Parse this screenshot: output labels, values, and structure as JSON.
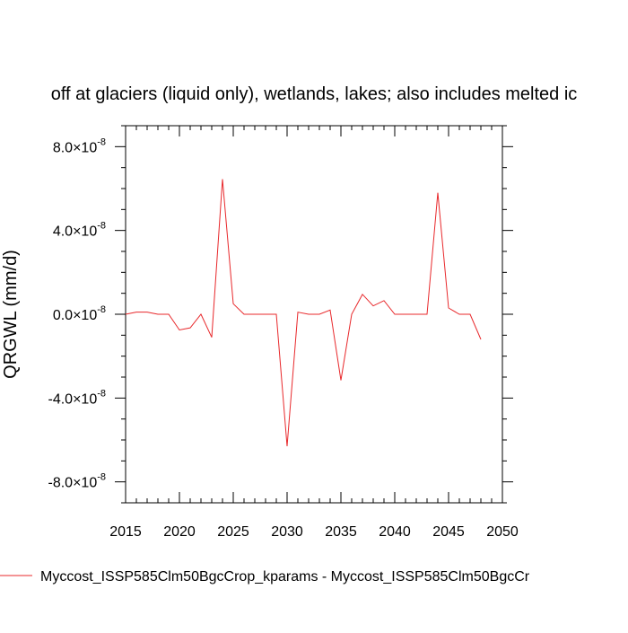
{
  "chart_data": {
    "type": "line",
    "title": "off at glaciers (liquid only), wetlands, lakes; also includes melted ic",
    "xlabel": "",
    "ylabel": "QRGWL  (mm/d)",
    "xlim": [
      2015,
      2050
    ],
    "ylim": [
      -9e-08,
      9e-08
    ],
    "x_ticks": [
      2015,
      2020,
      2025,
      2030,
      2035,
      2040,
      2045,
      2050
    ],
    "x_tick_labels": [
      "2015",
      "2020",
      "2025",
      "2030",
      "2035",
      "2040",
      "2045",
      "2050"
    ],
    "y_ticks": [
      8e-08,
      4e-08,
      0,
      -4e-08,
      -8e-08
    ],
    "y_tick_labels": [
      {
        "mantissa": "8.0",
        "exponent": "-8"
      },
      {
        "mantissa": "4.0",
        "exponent": "-8"
      },
      {
        "mantissa": "0.0",
        "exponent": "-8"
      },
      {
        "mantissa": "-4.0",
        "exponent": "-8"
      },
      {
        "mantissa": "-8.0",
        "exponent": "-8"
      }
    ],
    "x": [
      2015,
      2016,
      2017,
      2018,
      2019,
      2020,
      2021,
      2022,
      2023,
      2024,
      2025,
      2026,
      2027,
      2028,
      2029,
      2030,
      2031,
      2032,
      2033,
      2034,
      2035,
      2036,
      2037,
      2038,
      2039,
      2040,
      2041,
      2042,
      2043,
      2044,
      2045,
      2046,
      2047,
      2048
    ],
    "series": [
      {
        "name": "Myccost_ISSP585Clm50BgcCrop_kparams - Myccost_ISSP585Clm50BgcCr",
        "color": "#e8282b",
        "values": [
          0,
          1e-09,
          1e-09,
          0,
          0,
          -7.5e-09,
          -6.5e-09,
          0,
          -1.1e-08,
          6.45e-08,
          5e-09,
          0,
          0,
          0,
          0,
          -6.3e-08,
          1e-09,
          0,
          0,
          2e-09,
          -3.15e-08,
          0,
          9.5e-09,
          4e-09,
          6.5e-09,
          0,
          0,
          0,
          0,
          5.8e-08,
          3e-09,
          0,
          0,
          -1.2e-08
        ]
      }
    ],
    "legend": "bottom-left",
    "grid": false
  }
}
